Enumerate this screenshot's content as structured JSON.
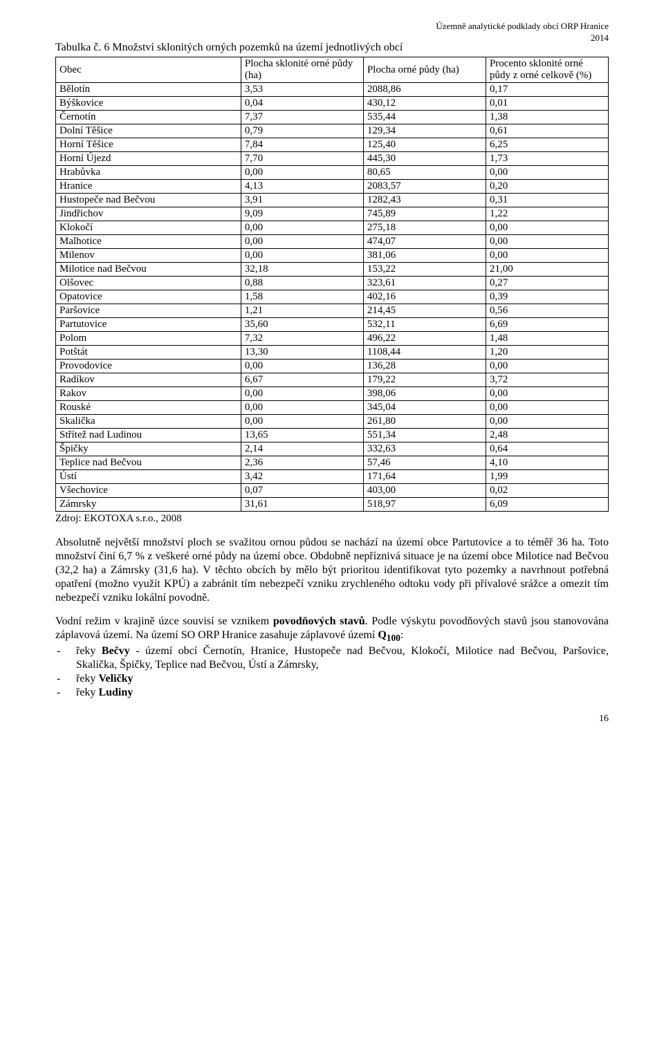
{
  "header": {
    "line1": "Územně analytické podklady obcí ORP Hranice",
    "line2": "2014"
  },
  "title": "Tabulka č. 6  Množství sklonitých orných pozemků na území jednotlivých obcí",
  "table": {
    "columns": [
      "Obec",
      "Plocha sklonité orné půdy (ha)",
      "Plocha orné půdy (ha)",
      "Procento sklonité orné půdy z orné celkově (%)"
    ],
    "rows": [
      [
        "Bělotín",
        "3,53",
        "2088,86",
        "0,17"
      ],
      [
        "Býškovice",
        "0,04",
        "430,12",
        "0,01"
      ],
      [
        "Černotín",
        "7,37",
        "535,44",
        "1,38"
      ],
      [
        "Dolní Těšice",
        "0,79",
        "129,34",
        "0,61"
      ],
      [
        "Horní Těšice",
        "7,84",
        "125,40",
        "6,25"
      ],
      [
        "Horní Újezd",
        "7,70",
        "445,30",
        "1,73"
      ],
      [
        "Hrabůvka",
        "0,00",
        "80,65",
        "0,00"
      ],
      [
        "Hranice",
        "4,13",
        "2083,57",
        "0,20"
      ],
      [
        "Hustopeče nad Bečvou",
        "3,91",
        "1282,43",
        "0,31"
      ],
      [
        "Jindřichov",
        "9,09",
        "745,89",
        "1,22"
      ],
      [
        "Klokočí",
        "0,00",
        "275,18",
        "0,00"
      ],
      [
        "Malhotice",
        "0,00",
        "474,07",
        "0,00"
      ],
      [
        "Milenov",
        "0,00",
        "381,06",
        "0,00"
      ],
      [
        "Milotice nad Bečvou",
        "32,18",
        "153,22",
        "21,00"
      ],
      [
        "Olšovec",
        "0,88",
        "323,61",
        "0,27"
      ],
      [
        "Opatovice",
        "1,58",
        "402,16",
        "0,39"
      ],
      [
        "Paršovice",
        "1,21",
        "214,45",
        "0,56"
      ],
      [
        "Partutovice",
        "35,60",
        "532,11",
        "6,69"
      ],
      [
        "Polom",
        "7,32",
        "496,22",
        "1,48"
      ],
      [
        "Potštát",
        "13,30",
        "1108,44",
        "1,20"
      ],
      [
        "Provodovice",
        "0,00",
        "136,28",
        "0,00"
      ],
      [
        "Radíkov",
        "6,67",
        "179,22",
        "3,72"
      ],
      [
        "Rakov",
        "0,00",
        "398,06",
        "0,00"
      ],
      [
        "Rouské",
        "0,00",
        "345,04",
        "0,00"
      ],
      [
        "Skalička",
        "0,00",
        "261,80",
        "0,00"
      ],
      [
        "Střítež nad Ludinou",
        "13,65",
        "551,34",
        "2,48"
      ],
      [
        "Špičky",
        "2,14",
        "332,63",
        "0,64"
      ],
      [
        "Teplice nad Bečvou",
        "2,36",
        "57,46",
        "4,10"
      ],
      [
        "Ústí",
        "3,42",
        "171,64",
        "1,99"
      ],
      [
        "Všechovice",
        "0,07",
        "403,00",
        "0,02"
      ],
      [
        "Zámrsky",
        "31,61",
        "518,97",
        "6,09"
      ]
    ]
  },
  "source": "Zdroj: EKOTOXA s.r.o., 2008",
  "para1": "Absolutně největší množství ploch se svažitou ornou půdou se nachází na území obce Partutovice a to téměř 36 ha. Toto množství činí 6,7 % z veškeré orné půdy na území obce. Obdobně nepříznivá situace je na území obce Milotice nad Bečvou (32,2 ha) a Zámrsky (31,6 ha). V těchto obcích by mělo být prioritou identifikovat tyto pozemky a navrhnout potřebná opatření (možno využít KPÚ) a zabránit tím nebezpečí vzniku zrychleného odtoku vody při přívalové srážce a omezit tím nebezpečí vzniku lokální povodně.",
  "para2_pre": "Vodní režim v krajině úzce souvisí se vznikem ",
  "para2_bold": "povodňových stavů",
  "para2_post": ". Podle výskytu povodňových stavů jsou stanovována záplavová území. Na území SO ORP Hranice zasahuje záplavové území ",
  "para2_q": "Q",
  "para2_sub": "100",
  "para2_colon": ":",
  "bullets": {
    "b1_pre": "řeky ",
    "b1_bold": "Bečvy",
    "b1_post": " - území obcí Černotín, Hranice, Hustopeče nad Bečvou, Klokočí, Milotice nad Bečvou, Paršovice, Skalička, Špičky, Teplice nad Bečvou, Ústí a Zámrsky,",
    "b2_pre": "řeky ",
    "b2_bold": "Veličky",
    "b3_pre": "řeky ",
    "b3_bold": "Ludiny"
  },
  "pagenum": "16"
}
